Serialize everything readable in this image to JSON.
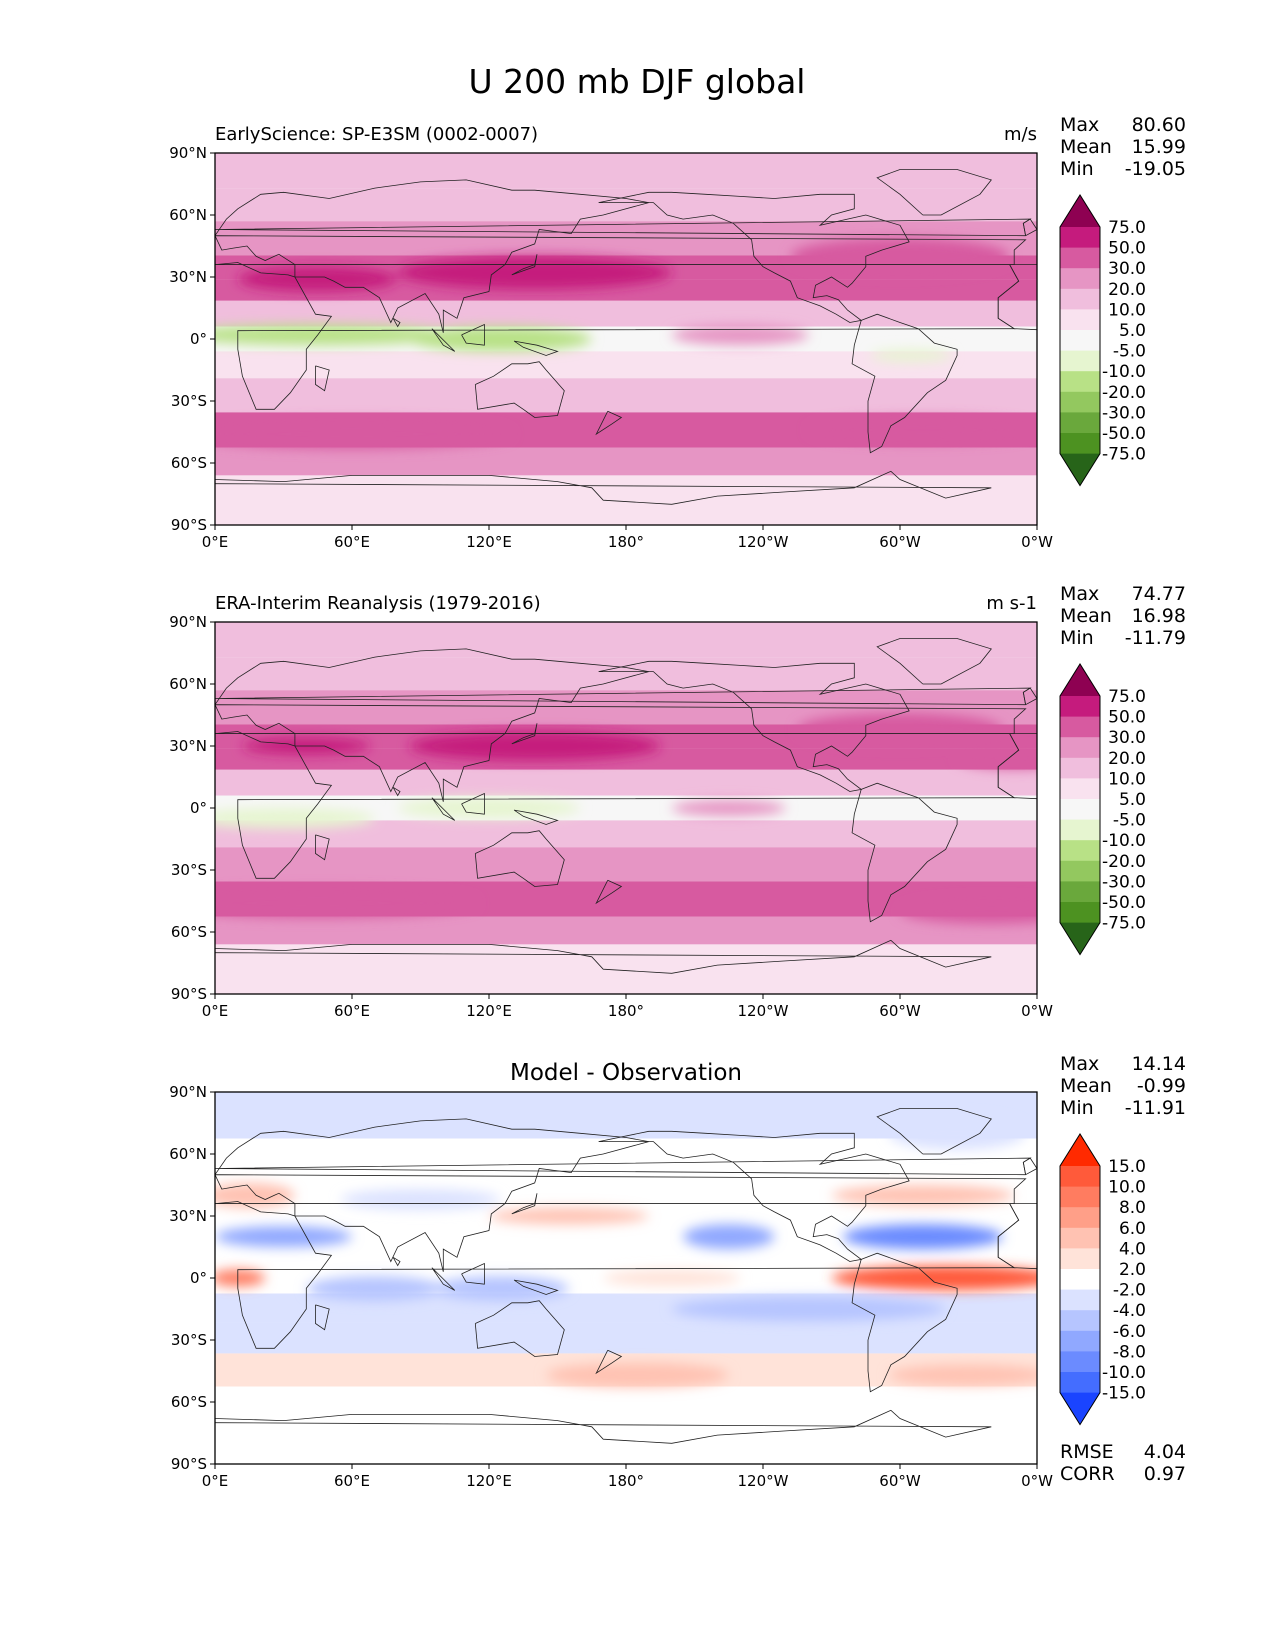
{
  "figure": {
    "title": "U 200 mb DJF global"
  },
  "chart_data": [
    {
      "type": "heatmap",
      "subplot": "test",
      "title_left": "EarlyScience: SP-E3SM (0002-0007)",
      "title_right": "m/s",
      "stats": {
        "labels": [
          "Max",
          "Mean",
          "Min"
        ],
        "values": [
          "80.60",
          "15.99",
          "-19.05"
        ]
      },
      "x_ticks": [
        "0°E",
        "60°E",
        "120°E",
        "180°",
        "120°W",
        "60°W",
        "0°W"
      ],
      "y_ticks": [
        "90°N",
        "60°N",
        "30°N",
        "0°",
        "30°S",
        "60°S",
        "90°S"
      ],
      "colorbar": {
        "levels": [
          "75.0",
          "50.0",
          "30.0",
          "20.0",
          "10.0",
          "5.0",
          "-5.0",
          "-10.0",
          "-20.0",
          "-30.0",
          "-50.0",
          "-75.0"
        ],
        "colors": [
          "#8e0152",
          "#c51b7d",
          "#d75aa0",
          "#e695c4",
          "#f0bedd",
          "#f9e2ef",
          "#f7f7f7",
          "#e6f5d0",
          "#b8e186",
          "#93c85f",
          "#6aa83c",
          "#4d9221",
          "#276419"
        ]
      },
      "bands": [
        {
          "lat": 80,
          "value": 12
        },
        {
          "lat": 66,
          "value": 14
        },
        {
          "lat": 48,
          "value": 26
        },
        {
          "lat": 33,
          "value": 45
        },
        {
          "lat": 25,
          "value": 38
        },
        {
          "lat": 12,
          "value": 18
        },
        {
          "lat": 0,
          "value": -2
        },
        {
          "lat": -12,
          "value": 8
        },
        {
          "lat": -26,
          "value": 18
        },
        {
          "lat": -45,
          "value": 35
        },
        {
          "lat": -60,
          "value": 22
        },
        {
          "lat": -72,
          "value": 6
        }
      ],
      "features": [
        {
          "lon": 150,
          "lat": 34,
          "rx": 32,
          "ry": 5,
          "value": 80
        },
        {
          "lon": 140,
          "lat": 32,
          "rx": 60,
          "ry": 8,
          "value": 55
        },
        {
          "lon": 45,
          "lat": 29,
          "rx": 35,
          "ry": 6,
          "value": 55
        },
        {
          "lon": 300,
          "lat": 40,
          "rx": 48,
          "ry": 9,
          "value": 35
        },
        {
          "lon": 45,
          "lat": 2,
          "rx": 60,
          "ry": 5,
          "value": -15
        },
        {
          "lon": 125,
          "lat": 0,
          "rx": 40,
          "ry": 6,
          "value": -15
        },
        {
          "lon": 230,
          "lat": 2,
          "rx": 30,
          "ry": 5,
          "value": 25
        },
        {
          "lon": 305,
          "lat": -8,
          "rx": 18,
          "ry": 3,
          "value": -8
        },
        {
          "lon": 60,
          "lat": -46,
          "rx": 70,
          "ry": 7,
          "value": 38
        },
        {
          "lon": 310,
          "lat": -44,
          "rx": 50,
          "ry": 6,
          "value": 38
        }
      ]
    },
    {
      "type": "heatmap",
      "subplot": "reference",
      "title_left": "ERA-Interim Reanalysis (1979-2016)",
      "title_right": "m s-1",
      "stats": {
        "labels": [
          "Max",
          "Mean",
          "Min"
        ],
        "values": [
          "74.77",
          "16.98",
          "-11.79"
        ]
      },
      "x_ticks": [
        "0°E",
        "60°E",
        "120°E",
        "180°",
        "120°W",
        "60°W",
        "0°W"
      ],
      "y_ticks": [
        "90°N",
        "60°N",
        "30°N",
        "0°",
        "30°S",
        "60°S",
        "90°S"
      ],
      "colorbar": {
        "levels": [
          "75.0",
          "50.0",
          "30.0",
          "20.0",
          "10.0",
          "5.0",
          "-5.0",
          "-10.0",
          "-20.0",
          "-30.0",
          "-50.0",
          "-75.0"
        ],
        "colors": [
          "#8e0152",
          "#c51b7d",
          "#d75aa0",
          "#e695c4",
          "#f0bedd",
          "#f9e2ef",
          "#f7f7f7",
          "#e6f5d0",
          "#b8e186",
          "#93c85f",
          "#6aa83c",
          "#4d9221",
          "#276419"
        ]
      },
      "bands": [
        {
          "lat": 80,
          "value": 12
        },
        {
          "lat": 66,
          "value": 16
        },
        {
          "lat": 48,
          "value": 26
        },
        {
          "lat": 33,
          "value": 42
        },
        {
          "lat": 25,
          "value": 35
        },
        {
          "lat": 12,
          "value": 16
        },
        {
          "lat": 0,
          "value": 0
        },
        {
          "lat": -12,
          "value": 10
        },
        {
          "lat": -26,
          "value": 20
        },
        {
          "lat": -45,
          "value": 33
        },
        {
          "lat": -60,
          "value": 22
        },
        {
          "lat": -72,
          "value": 6
        }
      ],
      "features": [
        {
          "lon": 140,
          "lat": 30,
          "rx": 55,
          "ry": 7,
          "value": 55
        },
        {
          "lon": 40,
          "lat": 30,
          "rx": 28,
          "ry": 4,
          "value": 55
        },
        {
          "lon": 300,
          "lat": 38,
          "rx": 45,
          "ry": 8,
          "value": 35
        },
        {
          "lon": 350,
          "lat": 24,
          "rx": 25,
          "ry": 5,
          "value": 35
        },
        {
          "lon": 30,
          "lat": -5,
          "rx": 40,
          "ry": 5,
          "value": -8
        },
        {
          "lon": 120,
          "lat": 0,
          "rx": 40,
          "ry": 5,
          "value": -8
        },
        {
          "lon": 225,
          "lat": 0,
          "rx": 25,
          "ry": 4,
          "value": 25
        },
        {
          "lon": 45,
          "lat": -46,
          "rx": 70,
          "ry": 7,
          "value": 38
        },
        {
          "lon": 340,
          "lat": -50,
          "rx": 40,
          "ry": 6,
          "value": 38
        }
      ]
    },
    {
      "type": "heatmap",
      "subplot": "difference",
      "title_center": "Model - Observation",
      "stats": {
        "labels": [
          "Max",
          "Mean",
          "Min"
        ],
        "values": [
          "14.14",
          "-0.99",
          "-11.91"
        ]
      },
      "metrics": {
        "labels": [
          "RMSE",
          "CORR"
        ],
        "values": [
          "4.04",
          "0.97"
        ]
      },
      "x_ticks": [
        "0°E",
        "60°E",
        "120°E",
        "180°",
        "120°W",
        "60°W",
        "0°W"
      ],
      "y_ticks": [
        "90°N",
        "60°N",
        "30°N",
        "0°",
        "30°S",
        "60°S",
        "90°S"
      ],
      "colorbar": {
        "levels": [
          "15.0",
          "10.0",
          "8.0",
          "6.0",
          "4.0",
          "2.0",
          "-2.0",
          "-4.0",
          "-6.0",
          "-8.0",
          "-10.0",
          "-15.0"
        ],
        "colors": [
          "#ff2a00",
          "#ff5a3a",
          "#ff7c60",
          "#ff9f88",
          "#ffc2b2",
          "#ffe3d9",
          "#ffffff",
          "#dbe2ff",
          "#b6c5ff",
          "#90a8ff",
          "#6b8bff",
          "#446dff",
          "#1a44ff"
        ]
      },
      "bands": [
        {
          "lat": 75,
          "value": -2.5
        },
        {
          "lat": 60,
          "value": -1
        },
        {
          "lat": 45,
          "value": 0
        },
        {
          "lat": 30,
          "value": 1
        },
        {
          "lat": 15,
          "value": -2
        },
        {
          "lat": 0,
          "value": 1
        },
        {
          "lat": -15,
          "value": -3
        },
        {
          "lat": -28,
          "value": -2.5
        },
        {
          "lat": -45,
          "value": 2.5
        },
        {
          "lat": -60,
          "value": 0
        },
        {
          "lat": -75,
          "value": 0
        }
      ],
      "features": [
        {
          "lon": 15,
          "lat": 40,
          "rx": 20,
          "ry": 6,
          "value": 5
        },
        {
          "lon": 30,
          "lat": 20,
          "rx": 30,
          "ry": 5,
          "value": -7
        },
        {
          "lon": 10,
          "lat": 0,
          "rx": 12,
          "ry": 4,
          "value": 9
        },
        {
          "lon": 70,
          "lat": -5,
          "rx": 30,
          "ry": 6,
          "value": -5
        },
        {
          "lon": 125,
          "lat": -5,
          "rx": 30,
          "ry": 6,
          "value": -5
        },
        {
          "lon": 155,
          "lat": 30,
          "rx": 35,
          "ry": 4,
          "value": 5
        },
        {
          "lon": 185,
          "lat": -47,
          "rx": 40,
          "ry": 6,
          "value": 5
        },
        {
          "lon": 225,
          "lat": 20,
          "rx": 20,
          "ry": 6,
          "value": -7
        },
        {
          "lon": 200,
          "lat": 0,
          "rx": 30,
          "ry": 4,
          "value": 3
        },
        {
          "lon": 310,
          "lat": 20,
          "rx": 35,
          "ry": 6,
          "value": -9
        },
        {
          "lon": 310,
          "lat": 40,
          "rx": 40,
          "ry": 5,
          "value": 5
        },
        {
          "lon": 320,
          "lat": 0,
          "rx": 50,
          "ry": 6,
          "value": 11
        },
        {
          "lon": 260,
          "lat": -15,
          "rx": 60,
          "ry": 6,
          "value": -5
        },
        {
          "lon": 330,
          "lat": -47,
          "rx": 35,
          "ry": 5,
          "value": 5
        },
        {
          "lon": 90,
          "lat": 38,
          "rx": 35,
          "ry": 5,
          "value": -3
        },
        {
          "lon": 325,
          "lat": 70,
          "rx": 30,
          "ry": 8,
          "value": -4
        }
      ]
    }
  ]
}
